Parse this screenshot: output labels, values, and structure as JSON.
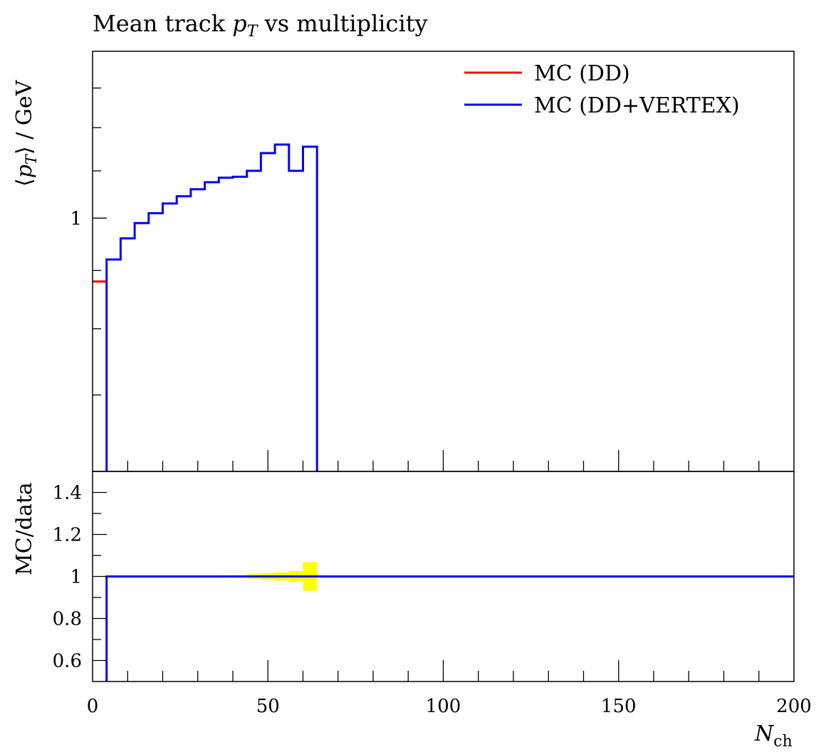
{
  "title": {
    "prefix": "Mean track ",
    "var": "p",
    "sub": "T",
    "suffix": " vs multiplicity"
  },
  "ylabel_main": {
    "open": "⟨",
    "var": "p",
    "sub": "T",
    "close": "⟩",
    "unit": " / GeV"
  },
  "ylabel_ratio": "MC/data",
  "xlabel": {
    "var": "N",
    "sub": "ch"
  },
  "legend": [
    {
      "label": "MC (DD)",
      "color": "#ff0000"
    },
    {
      "label": "MC (DD+VERTEX)",
      "color": "#0000ff"
    }
  ],
  "chart_data": [
    {
      "type": "line",
      "panel": "main",
      "ylabel": "⟨pT⟩ / GeV",
      "xlim": [
        0,
        200
      ],
      "ylim": [
        0.6,
        1.4
      ],
      "y_scale": "log",
      "ytick_labels": [
        "1"
      ],
      "xtick_labels": [
        "0",
        "50",
        "100",
        "150",
        "200"
      ],
      "legend_position": "top-right",
      "series": [
        {
          "name": "MC (DD)",
          "color": "#ff0000",
          "edges": [
            0,
            4
          ],
          "values": [
            0.88
          ]
        },
        {
          "name": "MC (DD+VERTEX)",
          "color": "#0000ff",
          "edges": [
            4,
            8,
            12,
            16,
            20,
            24,
            28,
            32,
            36,
            40,
            44,
            48,
            52,
            56,
            60,
            64
          ],
          "values": [
            0.92,
            0.96,
            0.99,
            1.01,
            1.03,
            1.045,
            1.06,
            1.075,
            1.085,
            1.087,
            1.1,
            1.14,
            1.16,
            1.1,
            1.155
          ]
        }
      ]
    },
    {
      "type": "area",
      "panel": "ratio",
      "ylabel": "MC/data",
      "xlim": [
        0,
        200
      ],
      "ylim": [
        0.5,
        1.5
      ],
      "ytick_labels": [
        "0.6",
        "0.8",
        "1",
        "1.2",
        "1.4"
      ],
      "xtick_labels": [
        "0",
        "50",
        "100",
        "150",
        "200"
      ],
      "series": [
        {
          "name": "data uncertainty",
          "color": "#ffff00",
          "edges": [
            36,
            40,
            44,
            48,
            52,
            56,
            60,
            64
          ],
          "errors": [
            0.003,
            0.006,
            0.01,
            0.015,
            0.02,
            0.025,
            0.068
          ]
        },
        {
          "name": "MC (DD+VERTEX)",
          "color": "#0000ff",
          "edges": [
            4,
            200
          ],
          "values": [
            1.0
          ]
        }
      ]
    }
  ]
}
